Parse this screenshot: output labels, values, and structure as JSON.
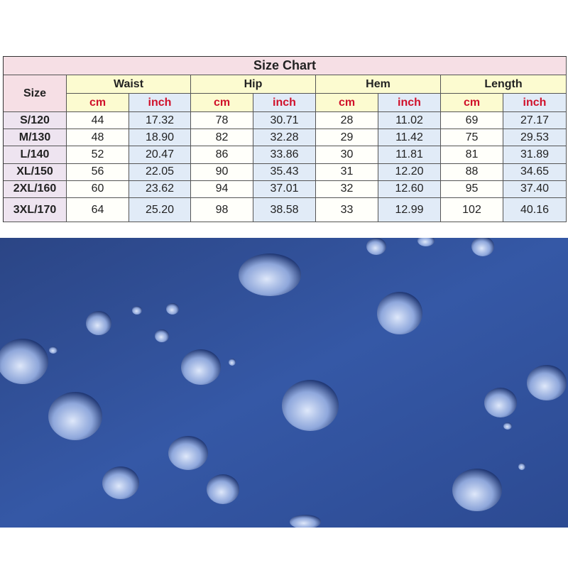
{
  "table": {
    "title": "Size Chart",
    "size_header": "Size",
    "groups": [
      {
        "name": "Waist",
        "units": [
          "cm",
          "inch"
        ]
      },
      {
        "name": "Hip",
        "units": [
          "cm",
          "inch"
        ]
      },
      {
        "name": "Hem",
        "units": [
          "cm",
          "inch"
        ]
      },
      {
        "name": "Length",
        "units": [
          "cm",
          "inch"
        ]
      }
    ],
    "rows": [
      {
        "size": "S/120",
        "values": [
          "44",
          "17.32",
          "78",
          "30.71",
          "28",
          "11.02",
          "69",
          "27.17"
        ]
      },
      {
        "size": "M/130",
        "values": [
          "48",
          "18.90",
          "82",
          "32.28",
          "29",
          "11.42",
          "75",
          "29.53"
        ]
      },
      {
        "size": "L/140",
        "values": [
          "52",
          "20.47",
          "86",
          "33.86",
          "30",
          "11.81",
          "81",
          "31.89"
        ]
      },
      {
        "size": "XL/150",
        "values": [
          "56",
          "22.05",
          "90",
          "35.43",
          "31",
          "12.20",
          "88",
          "34.65"
        ]
      },
      {
        "size": "2XL/160",
        "values": [
          "60",
          "23.62",
          "94",
          "37.01",
          "32",
          "12.60",
          "95",
          "37.40"
        ]
      },
      {
        "size": "3XL/170",
        "values": [
          "64",
          "25.20",
          "98",
          "38.58",
          "33",
          "12.99",
          "102",
          "40.16"
        ]
      }
    ]
  }
}
